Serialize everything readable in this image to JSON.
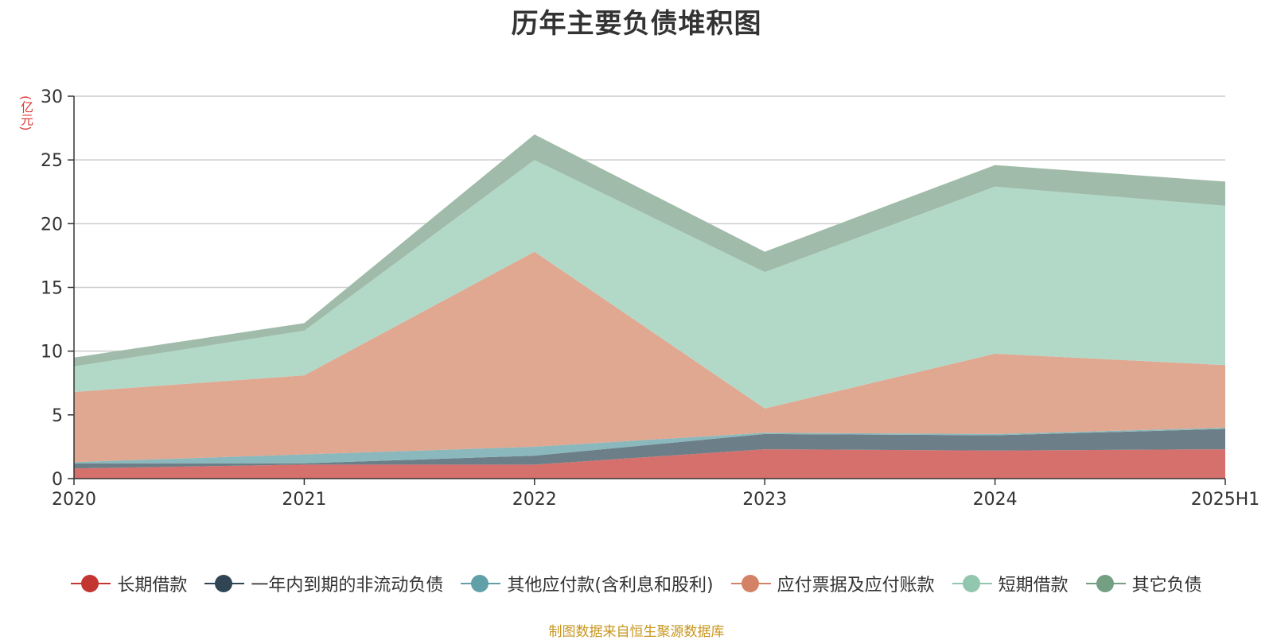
{
  "chart_data": {
    "type": "area",
    "title": "历年主要负债堆积图",
    "unit_label": "(亿元)",
    "source_note": "制图数据来自恒生聚源数据库",
    "categories": [
      "2020",
      "2021",
      "2022",
      "2023",
      "2024",
      "2025H1"
    ],
    "ylim": [
      0,
      30
    ],
    "yticks": [
      0,
      5,
      10,
      15,
      20,
      25,
      30
    ],
    "grid": true,
    "stacked": true,
    "legend_position": "bottom",
    "series": [
      {
        "name": "长期借款",
        "values": [
          0.8,
          1.1,
          1.1,
          2.3,
          2.2,
          2.3
        ],
        "color": "#c23531",
        "area_color": "#d6706c"
      },
      {
        "name": "一年内到期的非流动负债",
        "values": [
          0.4,
          0.1,
          0.7,
          1.2,
          1.2,
          1.6
        ],
        "color": "#2f4554",
        "area_color": "#6c7f88"
      },
      {
        "name": "其他应付款(含利息和股利)",
        "values": [
          0.1,
          0.7,
          0.7,
          0.1,
          0.1,
          0.1
        ],
        "color": "#61a0a8",
        "area_color": "#8ab8bc"
      },
      {
        "name": "应付票据及应付账款",
        "values": [
          5.5,
          6.2,
          15.3,
          1.9,
          6.3,
          4.9
        ],
        "color": "#d48265",
        "area_color": "#e0a791"
      },
      {
        "name": "短期借款",
        "values": [
          2.0,
          3.5,
          7.2,
          10.7,
          13.1,
          12.5
        ],
        "color": "#91c7ae",
        "area_color": "#b2d9c7"
      },
      {
        "name": "其它负债",
        "values": [
          0.7,
          0.6,
          2.0,
          1.6,
          1.7,
          1.9
        ],
        "color": "#749f83",
        "area_color": "#a0bba9"
      }
    ]
  }
}
